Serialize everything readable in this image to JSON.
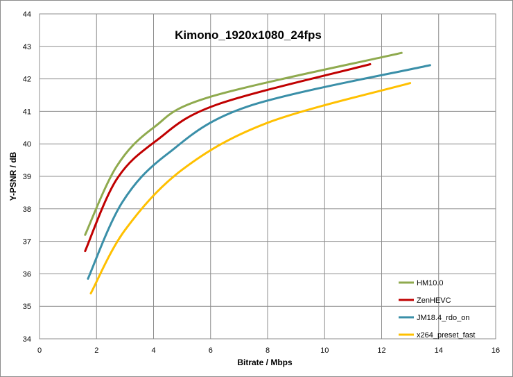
{
  "chart_data": {
    "type": "line",
    "title": "Kimono_1920x1080_24fps",
    "xlabel": "Bitrate / Mbps",
    "ylabel": "Y-PSNR / dB",
    "xlim": [
      0,
      16
    ],
    "ylim": [
      34,
      44
    ],
    "x_ticks": [
      "0",
      "2",
      "4",
      "6",
      "8",
      "10",
      "12",
      "14",
      "16"
    ],
    "y_ticks": [
      "34",
      "35",
      "36",
      "37",
      "38",
      "39",
      "40",
      "41",
      "42",
      "43",
      "44"
    ],
    "grid": true,
    "legend_position": "bottom-right",
    "series": [
      {
        "name": "HM10.0",
        "color": "#8faa4e",
        "points": [
          [
            1.6,
            37.2
          ],
          [
            2.7,
            39.3
          ],
          [
            4.0,
            40.5
          ],
          [
            6.0,
            41.45
          ],
          [
            12.7,
            42.8
          ]
        ]
      },
      {
        "name": "ZenHEVC",
        "color": "#c00000",
        "points": [
          [
            1.6,
            36.7
          ],
          [
            2.7,
            38.9
          ],
          [
            4.1,
            40.1
          ],
          [
            6.2,
            41.2
          ],
          [
            11.6,
            42.45
          ]
        ]
      },
      {
        "name": "JM18.4_rdo_on",
        "color": "#3a8fa8",
        "points": [
          [
            1.7,
            35.85
          ],
          [
            2.9,
            38.2
          ],
          [
            4.5,
            39.7
          ],
          [
            7.3,
            41.15
          ],
          [
            13.7,
            42.42
          ]
        ]
      },
      {
        "name": "x264_preset_fast",
        "color": "#ffc000",
        "points": [
          [
            1.8,
            35.4
          ],
          [
            3.0,
            37.35
          ],
          [
            5.0,
            39.2
          ],
          [
            8.0,
            40.65
          ],
          [
            13.0,
            41.87
          ]
        ]
      }
    ]
  }
}
